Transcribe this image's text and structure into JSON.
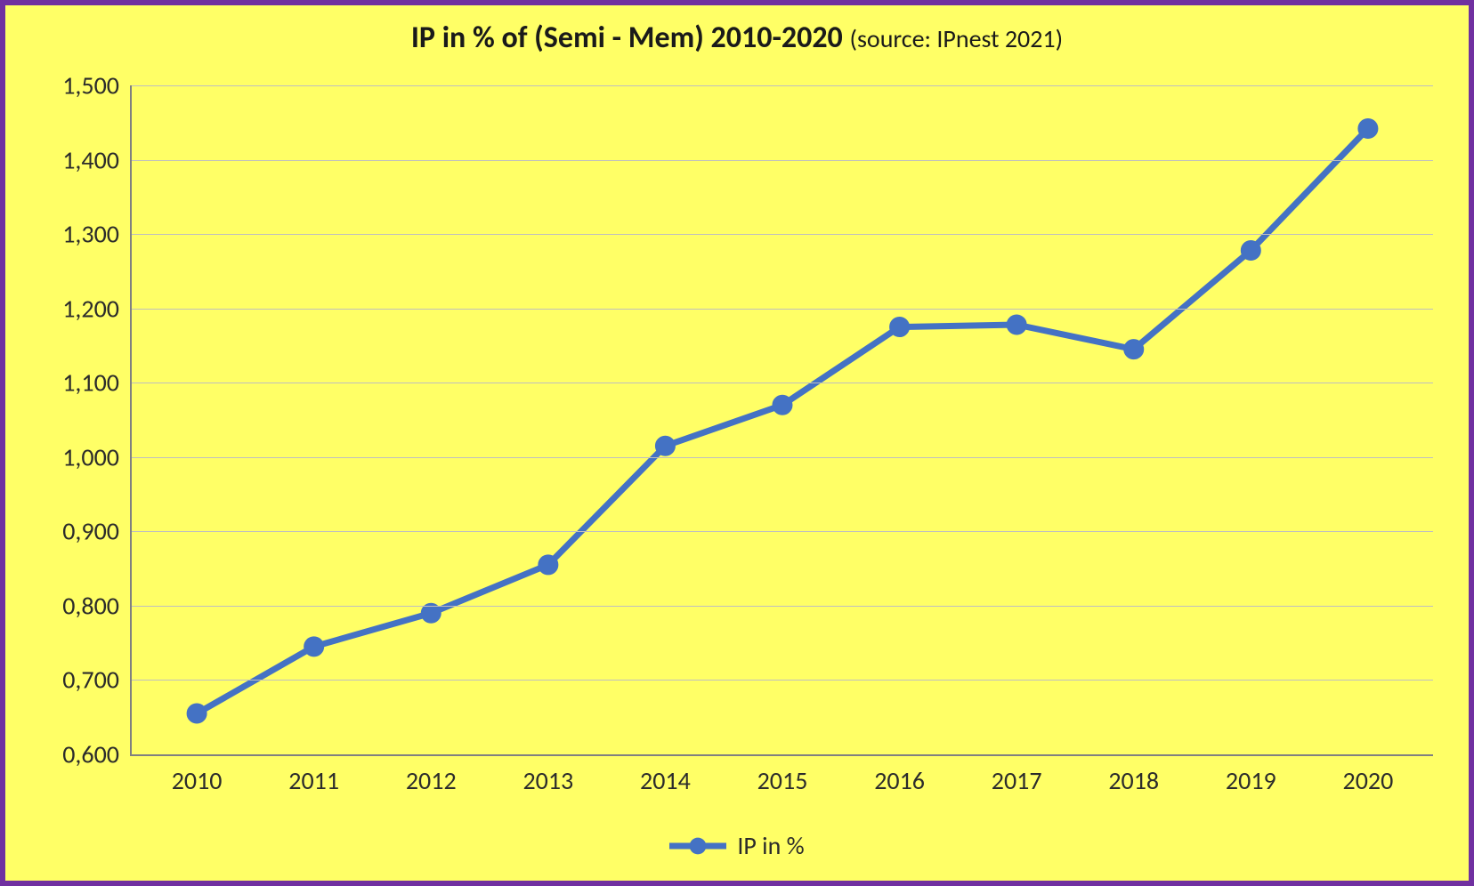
{
  "chart": {
    "type": "line",
    "title_main": "IP in % of (Semi - Mem) 2010-2020 ",
    "title_sub": "(source: IPnest 2021)",
    "title_fontsize_main": 34,
    "title_fontsize_sub": 28,
    "title_color": "#1a1a1a",
    "background_color": "#ffff66",
    "border_color": "#7030a0",
    "axis_color": "#808080",
    "grid_color": "#bfbfbf",
    "tick_label_color": "#2b2b2b",
    "tick_label_fontsize": 28,
    "series": {
      "name": "IP in %",
      "color": "#4472c4",
      "line_width": 7,
      "marker_radius": 11,
      "marker_style": "circle",
      "categories": [
        "2010",
        "2011",
        "2012",
        "2013",
        "2014",
        "2015",
        "2016",
        "2017",
        "2018",
        "2019",
        "2020"
      ],
      "values": [
        0.655,
        0.745,
        0.79,
        0.855,
        1.015,
        1.07,
        1.175,
        1.178,
        1.145,
        1.278,
        1.442
      ]
    },
    "y_axis": {
      "min": 0.6,
      "max": 1.5,
      "step": 0.1,
      "tick_labels": [
        "0,600",
        "0,700",
        "0,800",
        "0,900",
        "1,000",
        "1,100",
        "1,200",
        "1,300",
        "1,400",
        "1,500"
      ],
      "grid_at_min": false
    },
    "x_axis": {
      "band_padding_frac": 0.05
    },
    "legend": {
      "label": "IP in %",
      "fontsize": 28,
      "position": "bottom",
      "swatch_line_length": 64
    }
  }
}
